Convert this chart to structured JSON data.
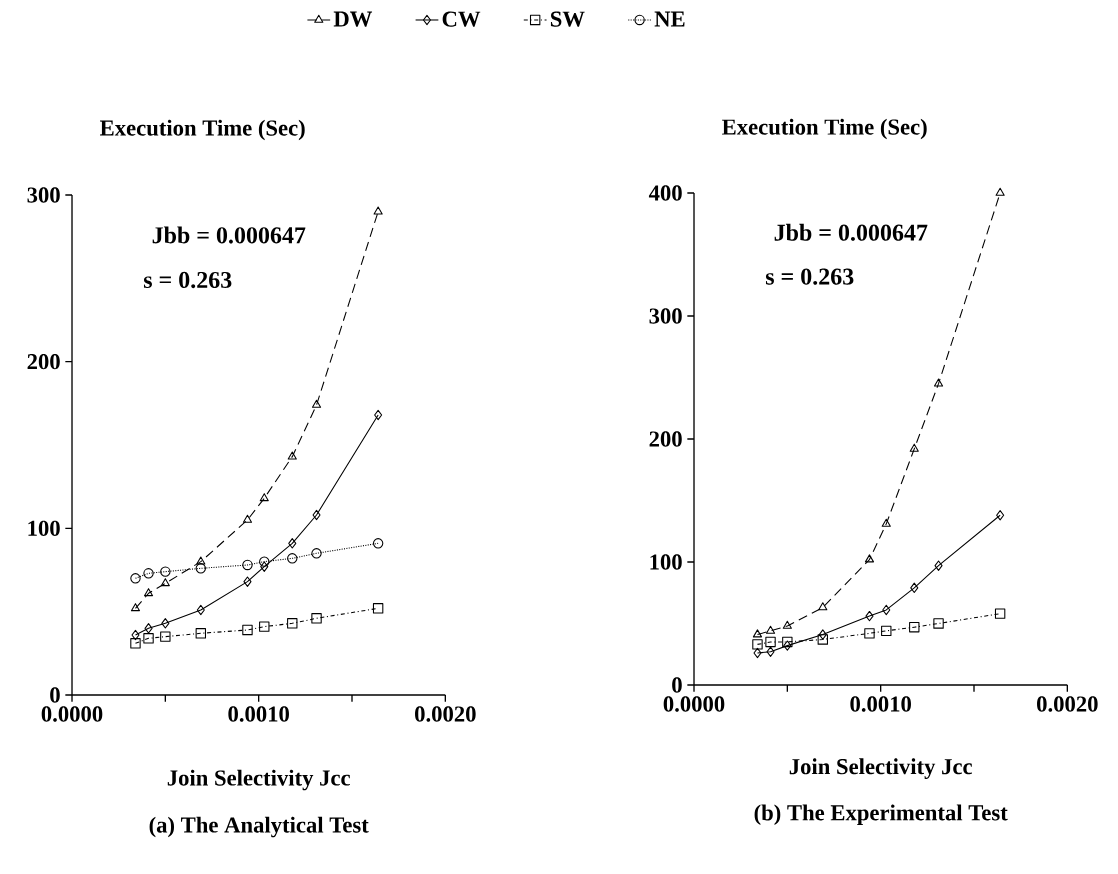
{
  "chart_data": [
    {
      "type": "line",
      "title": "(a) The Analytical Test",
      "xlabel": "Join Selectivity Jcc",
      "ylabel": "Execution Time (Sec)",
      "annotations": [
        "Jbb = 0.000647",
        "s = 0.263"
      ],
      "x": [
        0.00034,
        0.00041,
        0.0005,
        0.00069,
        0.00094,
        0.00103,
        0.00118,
        0.00131,
        0.00164
      ],
      "series": [
        {
          "name": "DW",
          "color": "#000000",
          "marker": "triangle",
          "line_style": "dashed",
          "values": [
            52,
            61,
            67,
            80,
            105,
            118,
            143,
            174,
            290
          ]
        },
        {
          "name": "CW",
          "color": "#000000",
          "marker": "diamond",
          "line_style": "solid",
          "values": [
            36,
            40,
            43,
            51,
            68,
            77,
            91,
            108,
            168
          ]
        },
        {
          "name": "SW",
          "color": "#000000",
          "marker": "square",
          "line_style": "dashdot",
          "values": [
            31,
            34,
            35,
            37,
            39,
            41,
            43,
            46,
            52
          ]
        },
        {
          "name": "NE",
          "color": "#000000",
          "marker": "circle",
          "line_style": "dotted",
          "values": [
            70,
            73,
            74,
            76,
            78,
            80,
            82,
            85,
            91
          ]
        }
      ],
      "xlim": [
        0,
        0.002
      ],
      "xticks": [
        {
          "value": 0,
          "label": "0.0000"
        },
        {
          "value": 0.0005,
          "label": null
        },
        {
          "value": 0.001,
          "label": "0.0010"
        },
        {
          "value": 0.0015,
          "label": null
        },
        {
          "value": 0.002,
          "label": "0.0020"
        }
      ],
      "ylim": [
        0,
        300
      ],
      "yticks": [
        0,
        100,
        200,
        300
      ],
      "grid": false,
      "legend": "top"
    },
    {
      "type": "line",
      "title": "(b) The Experimental Test",
      "xlabel": "Join Selectivity Jcc",
      "ylabel": "Execution Time (Sec)",
      "annotations": [
        "Jbb = 0.000647",
        "s = 0.263"
      ],
      "x": [
        0.00034,
        0.00041,
        0.0005,
        0.00069,
        0.00094,
        0.00103,
        0.00118,
        0.00131,
        0.00164
      ],
      "series": [
        {
          "color": "#000000",
          "marker": "triangle",
          "line_style": "dashed",
          "values": [
            41,
            44,
            48,
            63,
            102,
            131,
            192,
            245,
            400
          ]
        },
        {
          "color": "#000000",
          "marker": "diamond",
          "line_style": "solid",
          "values": [
            26,
            27,
            32,
            41,
            56,
            61,
            79,
            97,
            138
          ]
        },
        {
          "color": "#000000",
          "marker": "square",
          "line_style": "dashdot",
          "values": [
            33,
            35,
            35,
            37,
            42,
            44,
            47,
            50,
            58
          ]
        }
      ],
      "xlim": [
        0,
        0.002
      ],
      "xticks": [
        {
          "value": 0,
          "label": "0.0000"
        },
        {
          "value": 0.0005,
          "label": null
        },
        {
          "value": 0.001,
          "label": "0.0010"
        },
        {
          "value": 0.0015,
          "label": null
        },
        {
          "value": 0.002,
          "label": "0.0020"
        }
      ],
      "ylim": [
        0,
        400
      ],
      "yticks": [
        0,
        100,
        200,
        300,
        400
      ],
      "grid": false
    }
  ]
}
